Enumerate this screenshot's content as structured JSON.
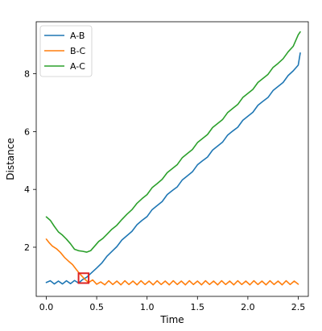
{
  "chart_data": {
    "type": "line",
    "title": "",
    "xlabel": "Time",
    "ylabel": "Distance",
    "xlim": [
      -0.1,
      2.6
    ],
    "ylim": [
      0.3,
      9.8
    ],
    "xticks": [
      0.0,
      0.5,
      1.0,
      1.5,
      2.0,
      2.5
    ],
    "xtick_labels": [
      "0.0",
      "0.5",
      "1.0",
      "1.5",
      "2.0",
      "2.5"
    ],
    "yticks": [
      2,
      4,
      6,
      8
    ],
    "ytick_labels": [
      "2",
      "4",
      "6",
      "8"
    ],
    "grid": false,
    "legend": "top-left",
    "series": [
      {
        "name": "A-B",
        "color": "#1f77b4",
        "points": [
          [
            0.0,
            0.78
          ],
          [
            0.04,
            0.84
          ],
          [
            0.08,
            0.73
          ],
          [
            0.12,
            0.83
          ],
          [
            0.16,
            0.73
          ],
          [
            0.2,
            0.84
          ],
          [
            0.24,
            0.74
          ],
          [
            0.28,
            0.85
          ],
          [
            0.32,
            0.76
          ],
          [
            0.36,
            0.88
          ],
          [
            0.4,
            0.96
          ],
          [
            0.45,
            1.12
          ],
          [
            0.5,
            1.28
          ],
          [
            0.55,
            1.45
          ],
          [
            0.6,
            1.68
          ],
          [
            0.65,
            1.85
          ],
          [
            0.7,
            2.02
          ],
          [
            0.75,
            2.25
          ],
          [
            0.8,
            2.4
          ],
          [
            0.85,
            2.55
          ],
          [
            0.9,
            2.78
          ],
          [
            0.95,
            2.93
          ],
          [
            1.0,
            3.06
          ],
          [
            1.05,
            3.3
          ],
          [
            1.1,
            3.44
          ],
          [
            1.15,
            3.58
          ],
          [
            1.2,
            3.82
          ],
          [
            1.25,
            3.96
          ],
          [
            1.3,
            4.09
          ],
          [
            1.35,
            4.33
          ],
          [
            1.4,
            4.47
          ],
          [
            1.45,
            4.61
          ],
          [
            1.5,
            4.85
          ],
          [
            1.55,
            4.99
          ],
          [
            1.6,
            5.12
          ],
          [
            1.65,
            5.36
          ],
          [
            1.7,
            5.5
          ],
          [
            1.75,
            5.64
          ],
          [
            1.8,
            5.88
          ],
          [
            1.85,
            6.02
          ],
          [
            1.9,
            6.15
          ],
          [
            1.95,
            6.39
          ],
          [
            2.0,
            6.53
          ],
          [
            2.05,
            6.67
          ],
          [
            2.1,
            6.91
          ],
          [
            2.15,
            7.05
          ],
          [
            2.2,
            7.18
          ],
          [
            2.25,
            7.42
          ],
          [
            2.3,
            7.56
          ],
          [
            2.35,
            7.7
          ],
          [
            2.4,
            7.94
          ],
          [
            2.45,
            8.1
          ],
          [
            2.5,
            8.3
          ],
          [
            2.52,
            8.72
          ]
        ]
      },
      {
        "name": "B-C",
        "color": "#ff7f0e",
        "points": [
          [
            0.0,
            2.28
          ],
          [
            0.03,
            2.15
          ],
          [
            0.06,
            2.04
          ],
          [
            0.1,
            1.95
          ],
          [
            0.14,
            1.82
          ],
          [
            0.18,
            1.65
          ],
          [
            0.22,
            1.52
          ],
          [
            0.26,
            1.4
          ],
          [
            0.3,
            1.22
          ],
          [
            0.34,
            1.05
          ],
          [
            0.38,
            0.9
          ],
          [
            0.42,
            0.78
          ],
          [
            0.46,
            0.87
          ],
          [
            0.5,
            0.72
          ],
          [
            0.54,
            0.8
          ],
          [
            0.58,
            0.7
          ],
          [
            0.62,
            0.84
          ],
          [
            0.66,
            0.71
          ],
          [
            0.7,
            0.83
          ],
          [
            0.74,
            0.7
          ],
          [
            0.78,
            0.84
          ],
          [
            0.82,
            0.71
          ],
          [
            0.86,
            0.83
          ],
          [
            0.9,
            0.7
          ],
          [
            0.94,
            0.84
          ],
          [
            0.98,
            0.71
          ],
          [
            1.02,
            0.83
          ],
          [
            1.06,
            0.7
          ],
          [
            1.1,
            0.84
          ],
          [
            1.14,
            0.71
          ],
          [
            1.18,
            0.83
          ],
          [
            1.22,
            0.7
          ],
          [
            1.26,
            0.84
          ],
          [
            1.3,
            0.71
          ],
          [
            1.34,
            0.83
          ],
          [
            1.38,
            0.7
          ],
          [
            1.42,
            0.84
          ],
          [
            1.46,
            0.71
          ],
          [
            1.5,
            0.83
          ],
          [
            1.54,
            0.7
          ],
          [
            1.58,
            0.84
          ],
          [
            1.62,
            0.71
          ],
          [
            1.66,
            0.83
          ],
          [
            1.7,
            0.7
          ],
          [
            1.74,
            0.84
          ],
          [
            1.78,
            0.71
          ],
          [
            1.82,
            0.83
          ],
          [
            1.86,
            0.7
          ],
          [
            1.9,
            0.84
          ],
          [
            1.94,
            0.71
          ],
          [
            1.98,
            0.83
          ],
          [
            2.02,
            0.7
          ],
          [
            2.06,
            0.84
          ],
          [
            2.1,
            0.71
          ],
          [
            2.14,
            0.83
          ],
          [
            2.18,
            0.7
          ],
          [
            2.22,
            0.84
          ],
          [
            2.26,
            0.71
          ],
          [
            2.3,
            0.83
          ],
          [
            2.34,
            0.7
          ],
          [
            2.38,
            0.84
          ],
          [
            2.42,
            0.71
          ],
          [
            2.46,
            0.83
          ],
          [
            2.5,
            0.72
          ]
        ]
      },
      {
        "name": "A-C",
        "color": "#2ca02c",
        "points": [
          [
            0.0,
            3.05
          ],
          [
            0.04,
            2.93
          ],
          [
            0.08,
            2.72
          ],
          [
            0.12,
            2.53
          ],
          [
            0.16,
            2.42
          ],
          [
            0.2,
            2.28
          ],
          [
            0.24,
            2.12
          ],
          [
            0.28,
            1.93
          ],
          [
            0.32,
            1.88
          ],
          [
            0.36,
            1.86
          ],
          [
            0.4,
            1.83
          ],
          [
            0.44,
            1.88
          ],
          [
            0.48,
            2.04
          ],
          [
            0.52,
            2.2
          ],
          [
            0.56,
            2.3
          ],
          [
            0.6,
            2.44
          ],
          [
            0.65,
            2.62
          ],
          [
            0.7,
            2.76
          ],
          [
            0.75,
            2.96
          ],
          [
            0.8,
            3.14
          ],
          [
            0.85,
            3.3
          ],
          [
            0.9,
            3.52
          ],
          [
            0.95,
            3.68
          ],
          [
            1.0,
            3.82
          ],
          [
            1.05,
            4.06
          ],
          [
            1.1,
            4.2
          ],
          [
            1.15,
            4.35
          ],
          [
            1.2,
            4.58
          ],
          [
            1.25,
            4.72
          ],
          [
            1.3,
            4.86
          ],
          [
            1.35,
            5.1
          ],
          [
            1.4,
            5.24
          ],
          [
            1.45,
            5.38
          ],
          [
            1.5,
            5.62
          ],
          [
            1.55,
            5.76
          ],
          [
            1.6,
            5.9
          ],
          [
            1.65,
            6.14
          ],
          [
            1.7,
            6.28
          ],
          [
            1.75,
            6.42
          ],
          [
            1.8,
            6.66
          ],
          [
            1.85,
            6.8
          ],
          [
            1.9,
            6.94
          ],
          [
            1.95,
            7.18
          ],
          [
            2.0,
            7.32
          ],
          [
            2.05,
            7.46
          ],
          [
            2.1,
            7.7
          ],
          [
            2.15,
            7.84
          ],
          [
            2.2,
            7.98
          ],
          [
            2.25,
            8.22
          ],
          [
            2.3,
            8.36
          ],
          [
            2.35,
            8.52
          ],
          [
            2.4,
            8.76
          ],
          [
            2.45,
            8.95
          ],
          [
            2.5,
            9.35
          ],
          [
            2.52,
            9.45
          ]
        ]
      }
    ],
    "annotation": {
      "shape": "square",
      "color": "#dd2222",
      "center": [
        0.37,
        0.93
      ],
      "half_width_x": 0.05,
      "half_height_y": 0.17
    }
  }
}
